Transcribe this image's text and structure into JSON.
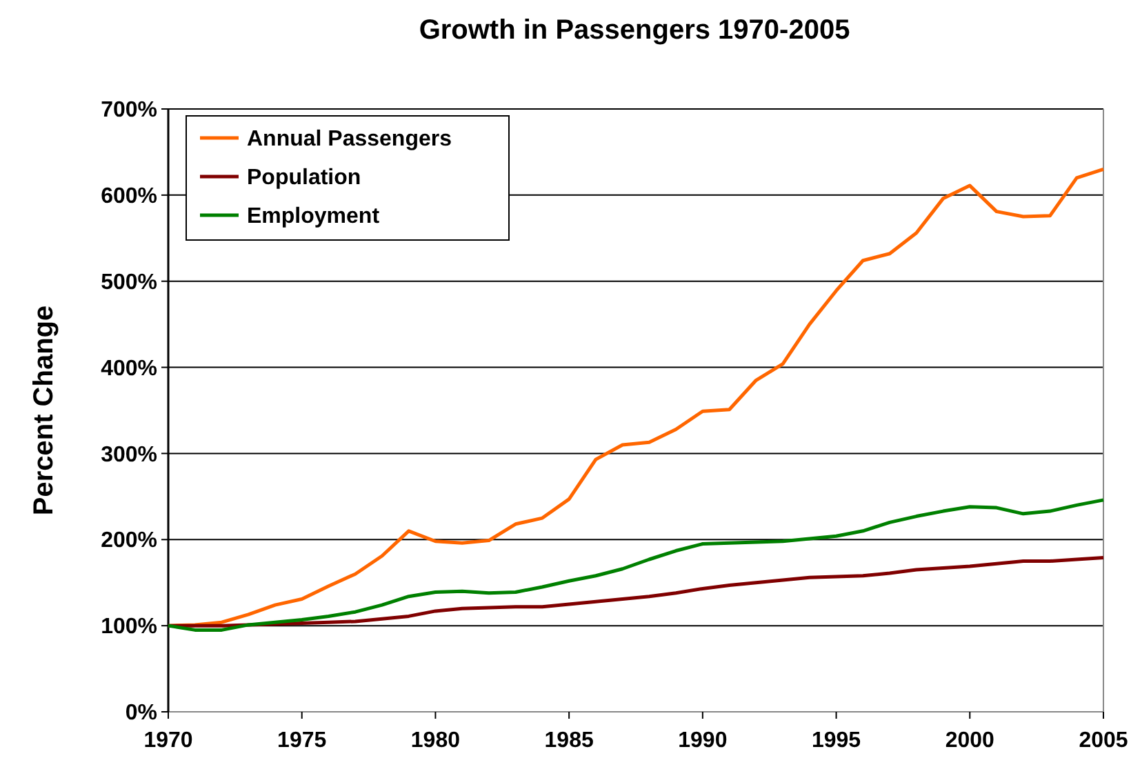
{
  "chart_data": {
    "type": "line",
    "title": "Growth in Passengers 1970-2005",
    "ylabel": "Percent Change",
    "x": [
      1970,
      1971,
      1972,
      1973,
      1974,
      1975,
      1976,
      1977,
      1978,
      1979,
      1980,
      1981,
      1982,
      1983,
      1984,
      1985,
      1986,
      1987,
      1988,
      1989,
      1990,
      1991,
      1992,
      1993,
      1994,
      1995,
      1996,
      1997,
      1998,
      1999,
      2000,
      2001,
      2002,
      2003,
      2004,
      2005
    ],
    "series": [
      {
        "name": "Annual Passengers",
        "color": "#ff6600",
        "values": [
          100,
          101,
          104,
          113,
          124,
          131,
          146,
          160,
          181,
          210,
          198,
          196,
          199,
          218,
          225,
          247,
          293,
          310,
          313,
          328,
          349,
          351,
          385,
          404,
          450,
          489,
          524,
          532,
          556,
          596,
          611,
          581,
          575,
          576,
          620,
          630
        ]
      },
      {
        "name": "Population",
        "color": "#800000",
        "values": [
          100,
          100,
          100,
          101,
          102,
          103,
          104,
          105,
          108,
          111,
          117,
          120,
          121,
          122,
          122,
          125,
          128,
          131,
          134,
          138,
          143,
          147,
          150,
          153,
          156,
          157,
          158,
          161,
          165,
          167,
          169,
          172,
          175,
          175,
          177,
          179
        ]
      },
      {
        "name": "Employment",
        "color": "#008000",
        "values": [
          100,
          95,
          95,
          101,
          104,
          107,
          111,
          116,
          124,
          134,
          139,
          140,
          138,
          139,
          145,
          152,
          158,
          166,
          177,
          187,
          195,
          196,
          197,
          198,
          201,
          204,
          210,
          220,
          227,
          233,
          238,
          237,
          230,
          233,
          240,
          246
        ]
      }
    ],
    "xlim": [
      1970,
      2005
    ],
    "xticks": [
      1970,
      1975,
      1980,
      1985,
      1990,
      1995,
      2000,
      2005
    ],
    "ylim": [
      0,
      700
    ],
    "yticks": [
      {
        "value": 0,
        "label": "0%"
      },
      {
        "value": 100,
        "label": "100%"
      },
      {
        "value": 200,
        "label": "200%"
      },
      {
        "value": 300,
        "label": "300%"
      },
      {
        "value": 400,
        "label": "400%"
      },
      {
        "value": 500,
        "label": "500%"
      },
      {
        "value": 600,
        "label": "600%"
      },
      {
        "value": 700,
        "label": "700%"
      }
    ],
    "grid": "y",
    "legend": "top left",
    "marker": "none",
    "line_style": "solid"
  }
}
